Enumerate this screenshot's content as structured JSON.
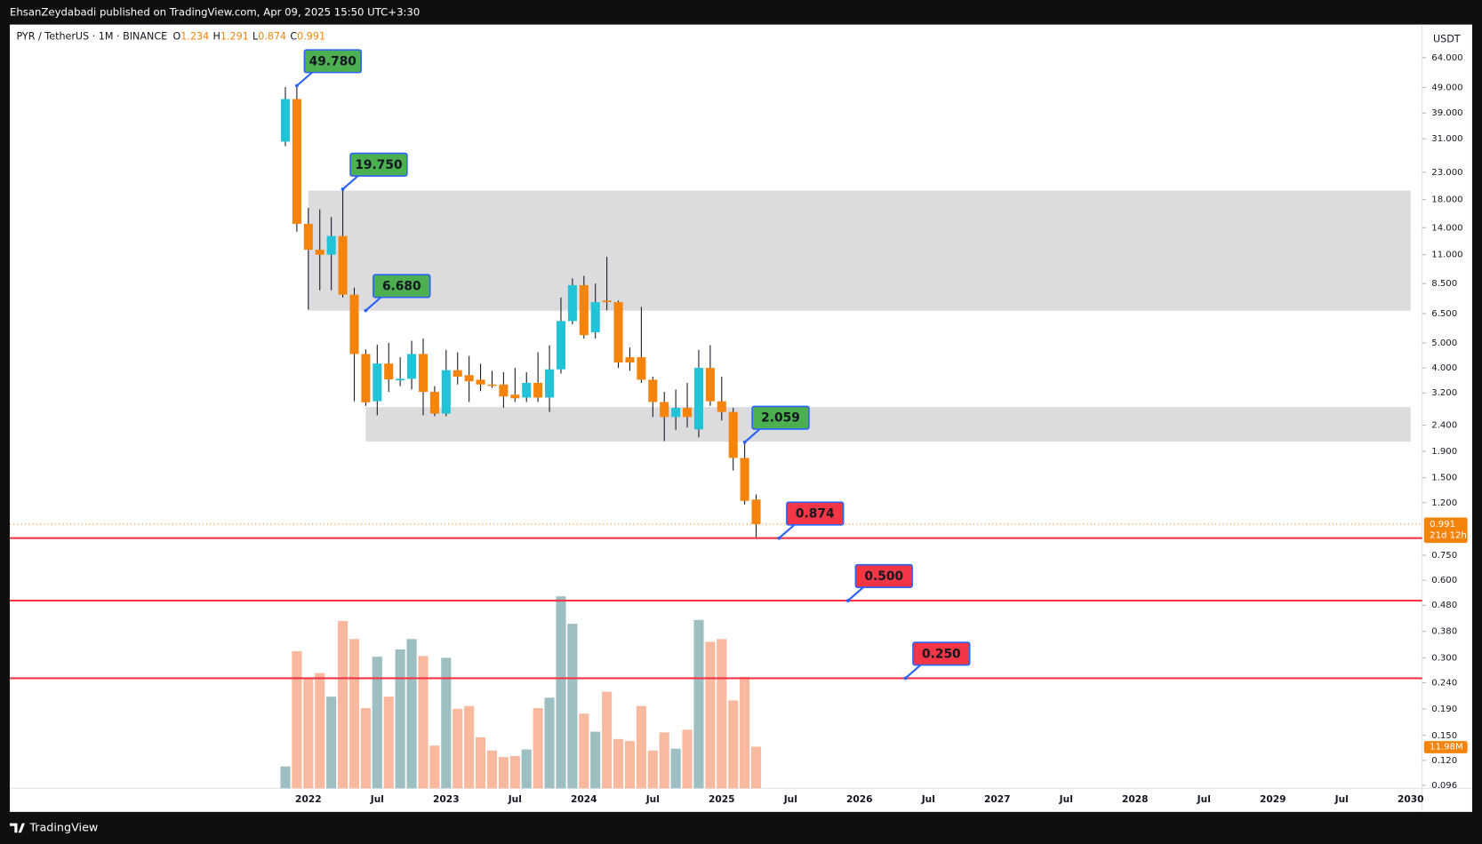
{
  "header": {
    "publisher": "EhsanZeydabadi published on TradingView.com, Apr 09, 2025 15:50 UTC+3:30"
  },
  "footer": {
    "brand": "TradingView"
  },
  "chart_data": {
    "type": "candlestick",
    "log_scale": true,
    "symbol": "PYR / TetherUS · 1M · BINANCE",
    "ohlc_legend": [
      {
        "key": "O",
        "value": 1.234
      },
      {
        "key": "H",
        "value": 1.291
      },
      {
        "key": "L",
        "value": 0.874
      },
      {
        "key": "C",
        "value": 0.991
      }
    ],
    "y_unit": "USDT",
    "x": [
      "2021-11",
      "2021-12",
      "2022-01",
      "2022-02",
      "2022-03",
      "2022-04",
      "2022-05",
      "2022-06",
      "2022-07",
      "2022-08",
      "2022-09",
      "2022-10",
      "2022-11",
      "2022-12",
      "2023-01",
      "2023-02",
      "2023-03",
      "2023-04",
      "2023-05",
      "2023-06",
      "2023-07",
      "2023-08",
      "2023-09",
      "2023-10",
      "2023-11",
      "2023-12",
      "2024-01",
      "2024-02",
      "2024-03",
      "2024-04",
      "2024-05",
      "2024-06",
      "2024-07",
      "2024-08",
      "2024-09",
      "2024-10",
      "2024-11",
      "2024-12",
      "2025-01",
      "2025-02",
      "2025-03",
      "2025-04"
    ],
    "open": [
      30.2,
      44.2,
      14.5,
      11.5,
      11.0,
      13.0,
      7.7,
      4.53,
      2.97,
      4.16,
      3.58,
      3.63,
      4.53,
      3.23,
      2.66,
      3.92,
      3.75,
      3.6,
      3.45,
      3.45,
      3.15,
      3.07,
      3.5,
      3.07,
      3.95,
      6.08,
      8.38,
      5.5,
      7.3,
      7.2,
      4.4,
      4.4,
      3.6,
      2.95,
      2.58,
      2.8,
      2.31,
      4.0,
      2.97,
      2.7,
      1.79,
      1.234
    ],
    "high": [
      49.2,
      49.78,
      16.7,
      16.5,
      15.4,
      19.75,
      8.2,
      4.72,
      4.92,
      5.0,
      4.4,
      5.1,
      5.2,
      3.4,
      4.7,
      4.6,
      4.45,
      4.15,
      3.9,
      3.85,
      4.0,
      3.85,
      4.6,
      4.9,
      7.5,
      8.9,
      9.1,
      8.5,
      10.8,
      7.3,
      4.8,
      6.9,
      3.7,
      3.23,
      3.3,
      3.5,
      4.7,
      4.9,
      3.7,
      2.8,
      2.059,
      1.291
    ],
    "low": [
      29.0,
      13.5,
      6.73,
      8.0,
      8.0,
      7.5,
      2.97,
      2.85,
      2.62,
      3.23,
      3.4,
      3.3,
      2.62,
      2.6,
      2.6,
      3.45,
      2.95,
      3.25,
      3.35,
      2.8,
      2.95,
      2.95,
      2.95,
      2.7,
      3.8,
      5.9,
      5.2,
      5.2,
      6.7,
      4.0,
      3.9,
      3.5,
      2.58,
      2.08,
      2.3,
      2.35,
      2.15,
      2.85,
      2.5,
      1.6,
      1.18,
      0.874
    ],
    "close": [
      44.2,
      14.5,
      11.5,
      11.0,
      13.0,
      7.7,
      4.53,
      2.94,
      4.16,
      3.61,
      3.63,
      4.53,
      3.23,
      2.66,
      3.92,
      3.7,
      3.55,
      3.45,
      3.42,
      3.1,
      3.05,
      3.5,
      3.07,
      3.95,
      6.08,
      8.38,
      5.36,
      7.2,
      7.2,
      4.2,
      4.2,
      3.6,
      2.95,
      2.58,
      2.8,
      2.58,
      4.0,
      2.97,
      2.7,
      1.79,
      1.22,
      0.991
    ],
    "volume": [
      6300000,
      39500000,
      31900000,
      33200000,
      26400000,
      48200000,
      43000000,
      23100000,
      37900000,
      26400000,
      40000000,
      43000000,
      38100000,
      12300000,
      37600000,
      22900000,
      23700000,
      14700000,
      10900000,
      9000000,
      9300000,
      11200000,
      23100000,
      26100000,
      55300000,
      47400000,
      21500000,
      16300000,
      27800000,
      14200000,
      13600000,
      23700000,
      10900000,
      16100000,
      11400000,
      16900000,
      48500000,
      42200000,
      43000000,
      25300000,
      32100000,
      11980000
    ],
    "up_color": "#22c3d6",
    "down_color": "#f5840c",
    "volume_up_color": "#9dbfc2",
    "volume_down_color": "#f9b99f",
    "volume_ylim": [
      0,
      220000000
    ],
    "last_price": 0.991,
    "countdown": "21d 12h",
    "last_volume": {
      "value": 11980000,
      "label": "11.98M"
    },
    "xlim": [
      "2019-11",
      "2030-02"
    ],
    "xticks": [
      {
        "value": "2022-01",
        "label": "2022"
      },
      {
        "value": "2022-07",
        "label": "Jul"
      },
      {
        "value": "2023-01",
        "label": "2023"
      },
      {
        "value": "2023-07",
        "label": "Jul"
      },
      {
        "value": "2024-01",
        "label": "2024"
      },
      {
        "value": "2024-07",
        "label": "Jul"
      },
      {
        "value": "2025-01",
        "label": "2025"
      },
      {
        "value": "2025-07",
        "label": "Jul"
      },
      {
        "value": "2026-01",
        "label": "2026"
      },
      {
        "value": "2026-07",
        "label": "Jul"
      },
      {
        "value": "2027-01",
        "label": "2027"
      },
      {
        "value": "2027-07",
        "label": "Jul"
      },
      {
        "value": "2028-01",
        "label": "2028"
      },
      {
        "value": "2028-07",
        "label": "Jul"
      },
      {
        "value": "2029-01",
        "label": "2029"
      },
      {
        "value": "2029-07",
        "label": "Jul"
      },
      {
        "value": "2030-01",
        "label": "2030"
      }
    ],
    "ylim": [
      0.0935,
      86
    ],
    "yticks": [
      {
        "value": 64,
        "label": "64.000"
      },
      {
        "value": 49,
        "label": "49.000"
      },
      {
        "value": 39,
        "label": "39.000"
      },
      {
        "value": 31,
        "label": "31.000"
      },
      {
        "value": 23,
        "label": "23.000"
      },
      {
        "value": 18,
        "label": "18.000"
      },
      {
        "value": 14,
        "label": "14.000"
      },
      {
        "value": 11,
        "label": "11.000"
      },
      {
        "value": 8.5,
        "label": "8.500"
      },
      {
        "value": 6.5,
        "label": "6.500"
      },
      {
        "value": 5,
        "label": "5.000"
      },
      {
        "value": 4,
        "label": "4.000"
      },
      {
        "value": 3.2,
        "label": "3.200"
      },
      {
        "value": 2.4,
        "label": "2.400"
      },
      {
        "value": 1.9,
        "label": "1.900"
      },
      {
        "value": 1.5,
        "label": "1.500"
      },
      {
        "value": 1.2,
        "label": "1.200"
      },
      {
        "value": 0.75,
        "label": "0.750"
      },
      {
        "value": 0.6,
        "label": "0.600"
      },
      {
        "value": 0.48,
        "label": "0.480"
      },
      {
        "value": 0.38,
        "label": "0.380"
      },
      {
        "value": 0.3,
        "label": "0.300"
      },
      {
        "value": 0.24,
        "label": "0.240"
      },
      {
        "value": 0.19,
        "label": "0.190"
      },
      {
        "value": 0.15,
        "label": "0.150"
      },
      {
        "value": 0.12,
        "label": "0.120"
      },
      {
        "value": 0.096,
        "label": "0.096"
      }
    ],
    "zones": [
      {
        "from": "2022-01",
        "to": "2030-01",
        "low": 6.67,
        "high": 19.5,
        "color": "#dcdcdf"
      },
      {
        "from": "2022-06",
        "to": "2030-01",
        "low": 2.07,
        "high": 2.82,
        "color": "#dcdcdf"
      }
    ],
    "annotations": [
      {
        "date": "2021-12",
        "price": {
          "value": 49.78,
          "label": "49.780"
        },
        "color": "#4caf50",
        "hline": false
      },
      {
        "date": "2022-04",
        "price": {
          "value": 19.75,
          "label": "19.750"
        },
        "color": "#4caf50",
        "hline": false
      },
      {
        "date": "2022-06",
        "price": {
          "value": 6.68,
          "label": "6.680"
        },
        "color": "#4caf50",
        "hline": false
      },
      {
        "date": "2025-03",
        "price": {
          "value": 2.059,
          "label": "2.059"
        },
        "color": "#4caf50",
        "hline": false
      },
      {
        "date": "2025-06",
        "price": {
          "value": 0.874,
          "label": "0.874"
        },
        "color": "#f23645",
        "hline": true
      },
      {
        "date": "2025-12",
        "price": {
          "value": 0.5,
          "label": "0.500"
        },
        "color": "#f23645",
        "hline": true
      },
      {
        "date": "2026-05",
        "price": {
          "value": 0.25,
          "label": "0.250"
        },
        "color": "#f23645",
        "hline": true
      }
    ]
  }
}
